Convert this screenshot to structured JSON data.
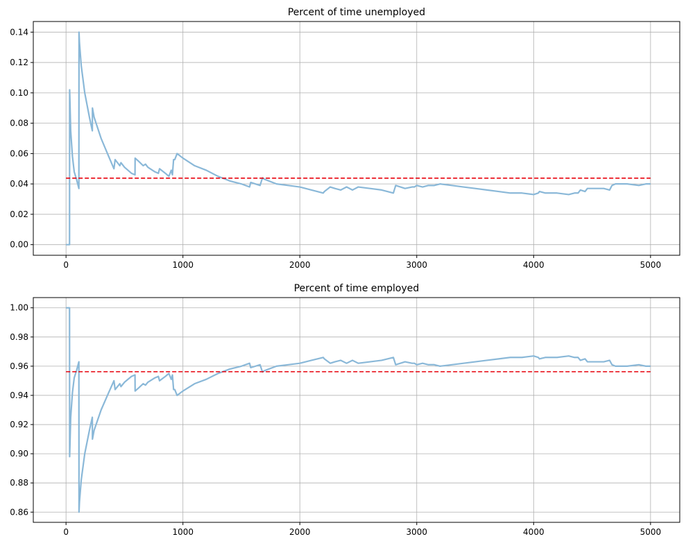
{
  "chart_data": [
    {
      "type": "line",
      "title": "Percent of time unemployed",
      "xlabel": "",
      "ylabel": "",
      "xlim": [
        -280,
        5250
      ],
      "ylim": [
        -0.007,
        0.147
      ],
      "xticks": [
        0,
        1000,
        2000,
        3000,
        4000,
        5000
      ],
      "yticks": [
        0.0,
        0.02,
        0.04,
        0.06,
        0.08,
        0.1,
        0.12,
        0.14
      ],
      "ytick_labels": [
        "0.00",
        "0.02",
        "0.04",
        "0.06",
        "0.08",
        "0.10",
        "0.12",
        "0.14"
      ],
      "grid": true,
      "series": [
        {
          "color": "#8ab8d8",
          "style": "solid",
          "x": [
            0,
            30,
            31,
            40,
            55,
            70,
            90,
            110,
            111,
            115,
            130,
            160,
            200,
            225,
            226,
            240,
            300,
            360,
            410,
            420,
            460,
            470,
            500,
            560,
            590,
            591,
            620,
            660,
            680,
            700,
            720,
            760,
            790,
            800,
            850,
            880,
            900,
            910,
            920,
            930,
            950,
            1000,
            1100,
            1200,
            1300,
            1400,
            1500,
            1570,
            1580,
            1620,
            1660,
            1680,
            1700,
            1800,
            1900,
            2000,
            2100,
            2200,
            2210,
            2260,
            2300,
            2350,
            2400,
            2450,
            2500,
            2600,
            2700,
            2800,
            2820,
            2900,
            2960,
            2980,
            3000,
            3050,
            3100,
            3150,
            3200,
            3300,
            3400,
            3500,
            3600,
            3700,
            3800,
            3900,
            4000,
            4040,
            4050,
            4100,
            4200,
            4300,
            4350,
            4380,
            4400,
            4440,
            4460,
            4500,
            4600,
            4650,
            4670,
            4700,
            4800,
            4900,
            4960,
            5000
          ],
          "y": [
            0.0,
            0.0,
            0.102,
            0.075,
            0.058,
            0.048,
            0.043,
            0.037,
            0.14,
            0.133,
            0.118,
            0.1,
            0.084,
            0.075,
            0.09,
            0.084,
            0.07,
            0.059,
            0.05,
            0.056,
            0.052,
            0.054,
            0.051,
            0.047,
            0.046,
            0.057,
            0.055,
            0.052,
            0.053,
            0.051,
            0.05,
            0.048,
            0.047,
            0.05,
            0.047,
            0.045,
            0.049,
            0.046,
            0.056,
            0.056,
            0.06,
            0.057,
            0.052,
            0.049,
            0.045,
            0.042,
            0.04,
            0.038,
            0.041,
            0.04,
            0.039,
            0.044,
            0.043,
            0.04,
            0.039,
            0.038,
            0.036,
            0.034,
            0.035,
            0.038,
            0.037,
            0.036,
            0.038,
            0.036,
            0.038,
            0.037,
            0.036,
            0.034,
            0.039,
            0.037,
            0.038,
            0.038,
            0.039,
            0.038,
            0.039,
            0.039,
            0.04,
            0.039,
            0.038,
            0.037,
            0.036,
            0.035,
            0.034,
            0.034,
            0.033,
            0.034,
            0.035,
            0.034,
            0.034,
            0.033,
            0.034,
            0.034,
            0.036,
            0.035,
            0.037,
            0.037,
            0.037,
            0.036,
            0.039,
            0.04,
            0.04,
            0.039,
            0.04,
            0.04
          ]
        },
        {
          "color": "#e8000b",
          "style": "dashed",
          "x": [
            0,
            5000
          ],
          "y": [
            0.0438,
            0.0438
          ]
        }
      ]
    },
    {
      "type": "line",
      "title": "Percent of time employed",
      "xlabel": "",
      "ylabel": "",
      "xlim": [
        -280,
        5250
      ],
      "ylim": [
        0.853,
        1.007
      ],
      "xticks": [
        0,
        1000,
        2000,
        3000,
        4000,
        5000
      ],
      "yticks": [
        0.86,
        0.88,
        0.9,
        0.92,
        0.94,
        0.96,
        0.98,
        1.0
      ],
      "ytick_labels": [
        "0.86",
        "0.88",
        "0.90",
        "0.92",
        "0.94",
        "0.96",
        "0.98",
        "1.00"
      ],
      "grid": true,
      "series": [
        {
          "color": "#8ab8d8",
          "style": "solid",
          "x": [
            0,
            30,
            31,
            40,
            55,
            70,
            90,
            110,
            111,
            115,
            130,
            160,
            200,
            225,
            226,
            240,
            300,
            360,
            410,
            420,
            460,
            470,
            500,
            560,
            590,
            591,
            620,
            660,
            680,
            700,
            720,
            760,
            790,
            800,
            850,
            880,
            900,
            910,
            920,
            930,
            950,
            1000,
            1100,
            1200,
            1300,
            1400,
            1500,
            1570,
            1580,
            1620,
            1660,
            1680,
            1700,
            1800,
            1900,
            2000,
            2100,
            2200,
            2210,
            2260,
            2300,
            2350,
            2400,
            2450,
            2500,
            2600,
            2700,
            2800,
            2820,
            2900,
            2960,
            2980,
            3000,
            3050,
            3100,
            3150,
            3200,
            3300,
            3400,
            3500,
            3600,
            3700,
            3800,
            3900,
            4000,
            4040,
            4050,
            4100,
            4200,
            4300,
            4350,
            4380,
            4400,
            4440,
            4460,
            4500,
            4600,
            4650,
            4670,
            4700,
            4800,
            4900,
            4960,
            5000
          ],
          "y": [
            1.0,
            1.0,
            0.898,
            0.925,
            0.942,
            0.952,
            0.957,
            0.963,
            0.86,
            0.867,
            0.882,
            0.9,
            0.916,
            0.925,
            0.91,
            0.916,
            0.93,
            0.941,
            0.95,
            0.944,
            0.948,
            0.946,
            0.949,
            0.953,
            0.954,
            0.943,
            0.945,
            0.948,
            0.947,
            0.949,
            0.95,
            0.952,
            0.953,
            0.95,
            0.953,
            0.955,
            0.951,
            0.954,
            0.944,
            0.944,
            0.94,
            0.943,
            0.948,
            0.951,
            0.955,
            0.958,
            0.96,
            0.962,
            0.959,
            0.96,
            0.961,
            0.956,
            0.957,
            0.96,
            0.961,
            0.962,
            0.964,
            0.966,
            0.965,
            0.962,
            0.963,
            0.964,
            0.962,
            0.964,
            0.962,
            0.963,
            0.964,
            0.966,
            0.961,
            0.963,
            0.962,
            0.962,
            0.961,
            0.962,
            0.961,
            0.961,
            0.96,
            0.961,
            0.962,
            0.963,
            0.964,
            0.965,
            0.966,
            0.966,
            0.967,
            0.966,
            0.965,
            0.966,
            0.966,
            0.967,
            0.966,
            0.966,
            0.964,
            0.965,
            0.963,
            0.963,
            0.963,
            0.964,
            0.961,
            0.96,
            0.96,
            0.961,
            0.96,
            0.96
          ]
        },
        {
          "color": "#e8000b",
          "style": "dashed",
          "x": [
            0,
            5000
          ],
          "y": [
            0.9562,
            0.9562
          ]
        }
      ]
    }
  ]
}
